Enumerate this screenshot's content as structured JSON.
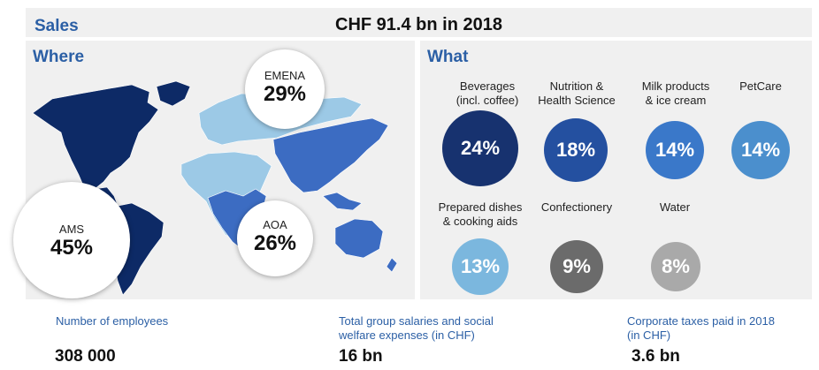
{
  "header": {
    "sales_label": "Sales",
    "headline": "CHF 91.4 bn in 2018"
  },
  "where": {
    "heading": "Where",
    "regions": [
      {
        "name": "EMENA",
        "percent": "29%"
      },
      {
        "name": "AMS",
        "percent": "45%"
      },
      {
        "name": "AOA",
        "percent": "26%"
      }
    ],
    "map_colors": {
      "ams": "#0d2a66",
      "emena": "#9cc9e6",
      "aoa": "#3c6cc2"
    }
  },
  "what": {
    "heading": "What",
    "categories": [
      {
        "label": "Beverages\n(incl. coffee)",
        "percent": "24%",
        "color": "#17326f"
      },
      {
        "label": "Nutrition &\nHealth Science",
        "percent": "18%",
        "color": "#2450a0"
      },
      {
        "label": "Milk products\n& ice cream",
        "percent": "14%",
        "color": "#3a78c9"
      },
      {
        "label": "PetCare",
        "percent": "14%",
        "color": "#4b8fcd"
      },
      {
        "label": "Prepared dishes\n& cooking aids",
        "percent": "13%",
        "color": "#7bb7de"
      },
      {
        "label": "Confectionery",
        "percent": "9%",
        "color": "#6b6b6b"
      },
      {
        "label": "Water",
        "percent": "8%",
        "color": "#a9a9a9"
      }
    ]
  },
  "footer": {
    "stats": [
      {
        "label": "Number of employees",
        "value": "308 000"
      },
      {
        "label": "Total group salaries and social\nwelfare expenses (in CHF)",
        "value": "16 bn"
      },
      {
        "label": "Corporate taxes paid in 2018\n(in CHF)",
        "value": "3.6 bn"
      }
    ]
  }
}
